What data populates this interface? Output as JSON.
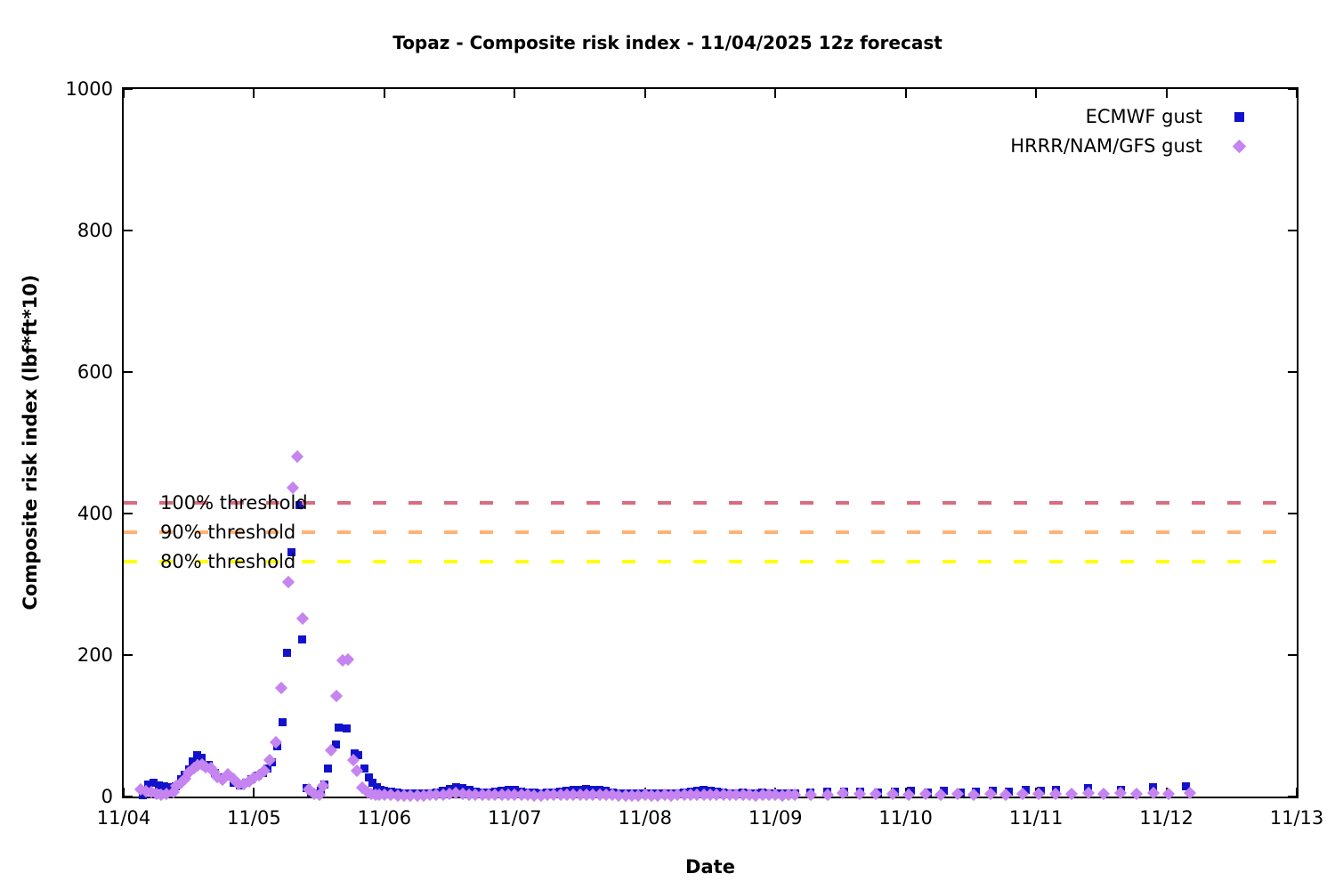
{
  "chart_data": {
    "type": "scatter",
    "title": "Topaz - Composite risk index - 11/04/2025 12z forecast",
    "xlabel": "Date",
    "ylabel": "Composite risk index (lbf*ft*10)",
    "x_axis": {
      "tick_labels": [
        "11/04",
        "11/05",
        "11/06",
        "11/07",
        "11/08",
        "11/09",
        "11/10",
        "11/11",
        "11/12",
        "11/13"
      ],
      "tick_days": [
        0,
        1,
        2,
        3,
        4,
        5,
        6,
        7,
        8,
        9
      ],
      "range_days": [
        0,
        9
      ]
    },
    "y_axis": {
      "tick_labels": [
        "0",
        "200",
        "400",
        "600",
        "800",
        "1000"
      ],
      "tick_values": [
        0,
        200,
        400,
        600,
        800,
        1000
      ],
      "range": [
        0,
        1000
      ]
    },
    "grid": false,
    "legend_position": "top-right-inside",
    "thresholds": [
      {
        "label": "100% threshold",
        "value": 415,
        "color": "#db6b80"
      },
      {
        "label": "90% threshold",
        "value": 373.5,
        "color": "#ffb273"
      },
      {
        "label": "80% threshold",
        "value": 332,
        "color": "#ffff00"
      }
    ],
    "series": [
      {
        "name": "ECMWF gust",
        "marker": "square",
        "color": "#1212cc",
        "points": [
          [
            0.15,
            2
          ],
          [
            0.19,
            17
          ],
          [
            0.23,
            19
          ],
          [
            0.27,
            16
          ],
          [
            0.31,
            14
          ],
          [
            0.35,
            13
          ],
          [
            0.4,
            15
          ],
          [
            0.44,
            25
          ],
          [
            0.47,
            31
          ],
          [
            0.5,
            38
          ],
          [
            0.53,
            50
          ],
          [
            0.56,
            59
          ],
          [
            0.6,
            55
          ],
          [
            0.65,
            45
          ],
          [
            0.7,
            33
          ],
          [
            0.75,
            27
          ],
          [
            0.8,
            28
          ],
          [
            0.84,
            20
          ],
          [
            0.89,
            16
          ],
          [
            0.94,
            20
          ],
          [
            0.98,
            25
          ],
          [
            1.03,
            29
          ],
          [
            1.07,
            33
          ],
          [
            1.1,
            40
          ],
          [
            1.14,
            48
          ],
          [
            1.18,
            71
          ],
          [
            1.22,
            105
          ],
          [
            1.25,
            203
          ],
          [
            1.29,
            345
          ],
          [
            1.35,
            412
          ],
          [
            1.37,
            222
          ],
          [
            1.4,
            12
          ],
          [
            1.44,
            6
          ],
          [
            1.48,
            5
          ],
          [
            1.51,
            8
          ],
          [
            1.54,
            17
          ],
          [
            1.57,
            40
          ],
          [
            1.63,
            73
          ],
          [
            1.65,
            98
          ],
          [
            1.71,
            96
          ],
          [
            1.77,
            61
          ],
          [
            1.8,
            59
          ],
          [
            1.85,
            40
          ],
          [
            1.88,
            27
          ],
          [
            1.91,
            19
          ],
          [
            1.94,
            13
          ],
          [
            1.97,
            10
          ],
          [
            2.0,
            8
          ],
          [
            2.05,
            7
          ],
          [
            2.1,
            6
          ],
          [
            2.15,
            5
          ],
          [
            2.2,
            4
          ],
          [
            2.25,
            5
          ],
          [
            2.3,
            4
          ],
          [
            2.35,
            5
          ],
          [
            2.4,
            6
          ],
          [
            2.45,
            8
          ],
          [
            2.5,
            11
          ],
          [
            2.55,
            13
          ],
          [
            2.6,
            12
          ],
          [
            2.65,
            9
          ],
          [
            2.7,
            7
          ],
          [
            2.75,
            6
          ],
          [
            2.8,
            6
          ],
          [
            2.85,
            7
          ],
          [
            2.9,
            8
          ],
          [
            2.95,
            10
          ],
          [
            3.0,
            9
          ],
          [
            3.05,
            7
          ],
          [
            3.1,
            6
          ],
          [
            3.15,
            6
          ],
          [
            3.2,
            5
          ],
          [
            3.25,
            6
          ],
          [
            3.3,
            6
          ],
          [
            3.35,
            7
          ],
          [
            3.4,
            8
          ],
          [
            3.45,
            9
          ],
          [
            3.5,
            10
          ],
          [
            3.55,
            11
          ],
          [
            3.6,
            10
          ],
          [
            3.65,
            9
          ],
          [
            3.7,
            8
          ],
          [
            3.75,
            6
          ],
          [
            3.8,
            5
          ],
          [
            3.85,
            5
          ],
          [
            3.9,
            4
          ],
          [
            3.95,
            4
          ],
          [
            4.0,
            5
          ],
          [
            4.05,
            4
          ],
          [
            4.1,
            4
          ],
          [
            4.15,
            5
          ],
          [
            4.2,
            4
          ],
          [
            4.25,
            5
          ],
          [
            4.3,
            6
          ],
          [
            4.35,
            7
          ],
          [
            4.4,
            8
          ],
          [
            4.45,
            9
          ],
          [
            4.5,
            8
          ],
          [
            4.55,
            7
          ],
          [
            4.6,
            6
          ],
          [
            4.65,
            5
          ],
          [
            4.7,
            5
          ],
          [
            4.75,
            6
          ],
          [
            4.8,
            5
          ],
          [
            4.85,
            5
          ],
          [
            4.9,
            6
          ],
          [
            4.95,
            5
          ],
          [
            5.0,
            5
          ],
          [
            5.05,
            4
          ],
          [
            5.1,
            5
          ],
          [
            5.15,
            4
          ],
          [
            5.27,
            6
          ],
          [
            5.4,
            7
          ],
          [
            5.53,
            7
          ],
          [
            5.65,
            7
          ],
          [
            5.79,
            6
          ],
          [
            5.92,
            7
          ],
          [
            6.04,
            8
          ],
          [
            6.17,
            6
          ],
          [
            6.29,
            8
          ],
          [
            6.42,
            6
          ],
          [
            6.54,
            7
          ],
          [
            6.67,
            8
          ],
          [
            6.79,
            7
          ],
          [
            6.92,
            9
          ],
          [
            7.04,
            8
          ],
          [
            7.15,
            10
          ],
          [
            7.4,
            12
          ],
          [
            7.65,
            10
          ],
          [
            7.9,
            13
          ],
          [
            8.15,
            14
          ]
        ]
      },
      {
        "name": "HRRR/NAM/GFS gust",
        "marker": "diamond",
        "color": "#c584f0",
        "points": [
          [
            0.13,
            10
          ],
          [
            0.17,
            8
          ],
          [
            0.21,
            6
          ],
          [
            0.25,
            4
          ],
          [
            0.29,
            2
          ],
          [
            0.33,
            4
          ],
          [
            0.38,
            6
          ],
          [
            0.4,
            15
          ],
          [
            0.44,
            19
          ],
          [
            0.47,
            25
          ],
          [
            0.5,
            34
          ],
          [
            0.54,
            40
          ],
          [
            0.57,
            44
          ],
          [
            0.6,
            45
          ],
          [
            0.63,
            41
          ],
          [
            0.67,
            40
          ],
          [
            0.69,
            35
          ],
          [
            0.72,
            28
          ],
          [
            0.76,
            24
          ],
          [
            0.8,
            31
          ],
          [
            0.84,
            25
          ],
          [
            0.88,
            17
          ],
          [
            0.92,
            18
          ],
          [
            0.96,
            22
          ],
          [
            1.0,
            26
          ],
          [
            1.04,
            30
          ],
          [
            1.08,
            36
          ],
          [
            1.12,
            52
          ],
          [
            1.17,
            77
          ],
          [
            1.21,
            153
          ],
          [
            1.26,
            303
          ],
          [
            1.3,
            437
          ],
          [
            1.33,
            481
          ],
          [
            1.37,
            251
          ],
          [
            1.42,
            10
          ],
          [
            1.46,
            4
          ],
          [
            1.5,
            3
          ],
          [
            1.53,
            15
          ],
          [
            1.59,
            65
          ],
          [
            1.63,
            142
          ],
          [
            1.68,
            192
          ],
          [
            1.72,
            194
          ],
          [
            1.76,
            52
          ],
          [
            1.79,
            36
          ],
          [
            1.83,
            13
          ],
          [
            1.87,
            6
          ],
          [
            1.9,
            4
          ],
          [
            1.93,
            3
          ],
          [
            1.96,
            3
          ],
          [
            2.0,
            2
          ],
          [
            2.05,
            2
          ],
          [
            2.1,
            1
          ],
          [
            2.15,
            1
          ],
          [
            2.2,
            1
          ],
          [
            2.25,
            1
          ],
          [
            2.3,
            1
          ],
          [
            2.35,
            2
          ],
          [
            2.4,
            2
          ],
          [
            2.45,
            3
          ],
          [
            2.5,
            4
          ],
          [
            2.55,
            5
          ],
          [
            2.6,
            4
          ],
          [
            2.65,
            3
          ],
          [
            2.7,
            2
          ],
          [
            2.75,
            2
          ],
          [
            2.8,
            2
          ],
          [
            2.85,
            2
          ],
          [
            2.9,
            3
          ],
          [
            2.95,
            3
          ],
          [
            3.0,
            2
          ],
          [
            3.05,
            2
          ],
          [
            3.1,
            2
          ],
          [
            3.15,
            1
          ],
          [
            3.2,
            1
          ],
          [
            3.25,
            2
          ],
          [
            3.3,
            2
          ],
          [
            3.35,
            2
          ],
          [
            3.4,
            3
          ],
          [
            3.45,
            3
          ],
          [
            3.5,
            3
          ],
          [
            3.55,
            3
          ],
          [
            3.6,
            3
          ],
          [
            3.65,
            2
          ],
          [
            3.7,
            2
          ],
          [
            3.75,
            2
          ],
          [
            3.8,
            1
          ],
          [
            3.85,
            1
          ],
          [
            3.9,
            1
          ],
          [
            3.95,
            1
          ],
          [
            4.0,
            2
          ],
          [
            4.05,
            1
          ],
          [
            4.1,
            1
          ],
          [
            4.15,
            2
          ],
          [
            4.2,
            1
          ],
          [
            4.25,
            2
          ],
          [
            4.3,
            2
          ],
          [
            4.35,
            2
          ],
          [
            4.4,
            3
          ],
          [
            4.45,
            3
          ],
          [
            4.5,
            3
          ],
          [
            4.55,
            2
          ],
          [
            4.6,
            2
          ],
          [
            4.65,
            2
          ],
          [
            4.7,
            2
          ],
          [
            4.75,
            2
          ],
          [
            4.8,
            2
          ],
          [
            4.85,
            1
          ],
          [
            4.9,
            2
          ],
          [
            4.95,
            2
          ],
          [
            5.0,
            2
          ],
          [
            5.05,
            1
          ],
          [
            5.1,
            2
          ],
          [
            5.15,
            2
          ],
          [
            5.27,
            3
          ],
          [
            5.4,
            3
          ],
          [
            5.52,
            5
          ],
          [
            5.65,
            4
          ],
          [
            5.77,
            4
          ],
          [
            5.9,
            4
          ],
          [
            6.02,
            3
          ],
          [
            6.15,
            4
          ],
          [
            6.27,
            3
          ],
          [
            6.4,
            4
          ],
          [
            6.52,
            3
          ],
          [
            6.65,
            4
          ],
          [
            6.77,
            3
          ],
          [
            6.9,
            4
          ],
          [
            7.02,
            4
          ],
          [
            7.15,
            4
          ],
          [
            7.27,
            4
          ],
          [
            7.4,
            5
          ],
          [
            7.52,
            4
          ],
          [
            7.65,
            5
          ],
          [
            7.77,
            4
          ],
          [
            7.9,
            5
          ],
          [
            8.02,
            4
          ],
          [
            8.18,
            5
          ]
        ]
      }
    ]
  }
}
